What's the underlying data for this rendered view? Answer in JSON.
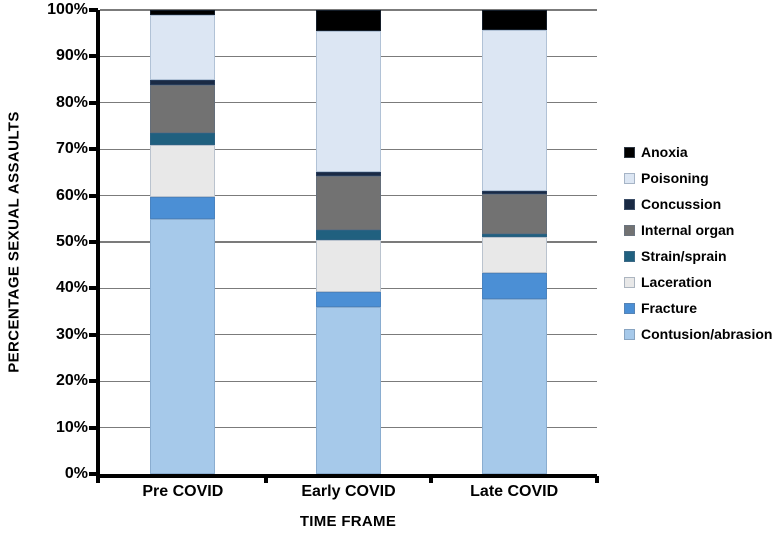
{
  "figure": {
    "background": "#ffffff"
  },
  "chart_data": {
    "type": "bar",
    "subtype": "100-percent-stacked-column",
    "title": "",
    "xlabel": "TIME FRAME",
    "ylabel": "PERCENTAGE SEXUAL ASSAULTS",
    "categories": [
      "Pre COVID",
      "Early COVID",
      "Late COVID"
    ],
    "series": [
      {
        "name": "Contusion/abrasion",
        "color": "#a6c9ea",
        "values": [
          55.0,
          35.9,
          37.8
        ]
      },
      {
        "name": "Fracture",
        "color": "#4b8fd5",
        "values": [
          4.8,
          3.4,
          5.6
        ]
      },
      {
        "name": "Laceration",
        "color": "#e8e8e8",
        "values": [
          11.1,
          11.2,
          7.6
        ]
      },
      {
        "name": "Strain/sprain",
        "color": "#20607f",
        "values": [
          2.5,
          2.1,
          0.7
        ]
      },
      {
        "name": "Internal organ",
        "color": "#727272",
        "values": [
          10.5,
          11.7,
          8.6
        ]
      },
      {
        "name": "Concussion",
        "color": "#1a2a44",
        "values": [
          1.0,
          0.7,
          0.7
        ]
      },
      {
        "name": "Poisoning",
        "color": "#dce6f3",
        "values": [
          14.1,
          30.5,
          34.7
        ]
      },
      {
        "name": "Anoxia",
        "color": "#000000",
        "values": [
          1.0,
          4.5,
          4.3
        ]
      }
    ],
    "legend": {
      "position": "right",
      "order_top_to_bottom": [
        "Anoxia",
        "Poisoning",
        "Concussion",
        "Internal organ",
        "Strain/sprain",
        "Laceration",
        "Fracture",
        "Contusion/abrasion"
      ]
    },
    "y_axis": {
      "min": 0,
      "max": 100,
      "tick_step": 10,
      "tick_labels": [
        "0%",
        "10%",
        "20%",
        "30%",
        "40%",
        "50%",
        "60%",
        "70%",
        "80%",
        "90%",
        "100%"
      ],
      "format": "percent"
    },
    "grid": true,
    "gridline_color": "#7b7b7b",
    "axis_color": "#000000"
  }
}
